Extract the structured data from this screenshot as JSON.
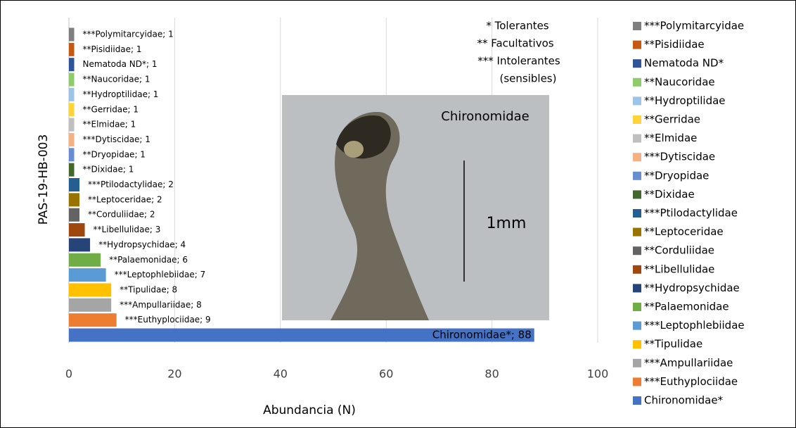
{
  "chart_data": {
    "type": "bar",
    "orientation": "horizontal",
    "x_label": "Abundancia (N)",
    "y_label": "PAS-19-HB-003",
    "categories": [
      "***Polymitarcyidae",
      "**Pisidiidae",
      "Nematoda ND*",
      "**Naucoridae",
      "**Hydroptilidae",
      "**Gerridae",
      "**Elmidae",
      "***Dytiscidae",
      "**Dryopidae",
      "**Dixidae",
      "***Ptilodactylidae",
      "**Leptoceridae",
      "**Corduliidae",
      "**Libellulidae",
      "**Hydropsychidae",
      "**Palaemonidae",
      "***Leptophlebiidae",
      "**Tipulidae",
      "***Ampullariidae",
      "***Euthyplociidae",
      "Chironomidae*"
    ],
    "values": [
      1,
      1,
      1,
      1,
      1,
      1,
      1,
      1,
      1,
      1,
      2,
      2,
      2,
      3,
      4,
      6,
      7,
      8,
      8,
      9,
      88
    ],
    "value_labels": [
      "***Polymitarcyidae; 1",
      "**Pisidiidae; 1",
      "Nematoda ND*; 1",
      "**Naucoridae; 1",
      "**Hydroptilidae; 1",
      "**Gerridae; 1",
      "**Elmidae; 1",
      "***Dytiscidae; 1",
      "**Dryopidae; 1",
      "**Dixidae; 1",
      "***Ptilodactylidae; 2",
      "**Leptoceridae; 2",
      "**Corduliidae; 2",
      "**Libellulidae; 3",
      "**Hydropsychidae; 4",
      "**Palaemonidae; 6",
      "***Leptophlebiidae; 7",
      "**Tipulidae; 8",
      "***Ampullariidae; 8",
      "***Euthyplociidae; 9",
      "Chironomidae*; 88"
    ],
    "colors": [
      "#7f7f7f",
      "#c65911",
      "#2f5597",
      "#8fca6b",
      "#9dc3e6",
      "#ffd43b",
      "#bfbfbf",
      "#f4b183",
      "#698ed0",
      "#43682b",
      "#255e91",
      "#997300",
      "#636363",
      "#9e480e",
      "#264478",
      "#70ad47",
      "#5b9bd5",
      "#ffc000",
      "#a5a5a5",
      "#ed7d31",
      "#4472c4"
    ],
    "xlim": [
      0,
      100
    ],
    "xticks": [
      0,
      20,
      40,
      60,
      80,
      100
    ],
    "grid": true,
    "legend": "right",
    "notes": [
      "* Tolerantes",
      "** Facultativos",
      "*** Intolerantes",
      "(sensibles)"
    ],
    "photo": {
      "caption": "Chironomidae",
      "scale": "1mm"
    }
  }
}
